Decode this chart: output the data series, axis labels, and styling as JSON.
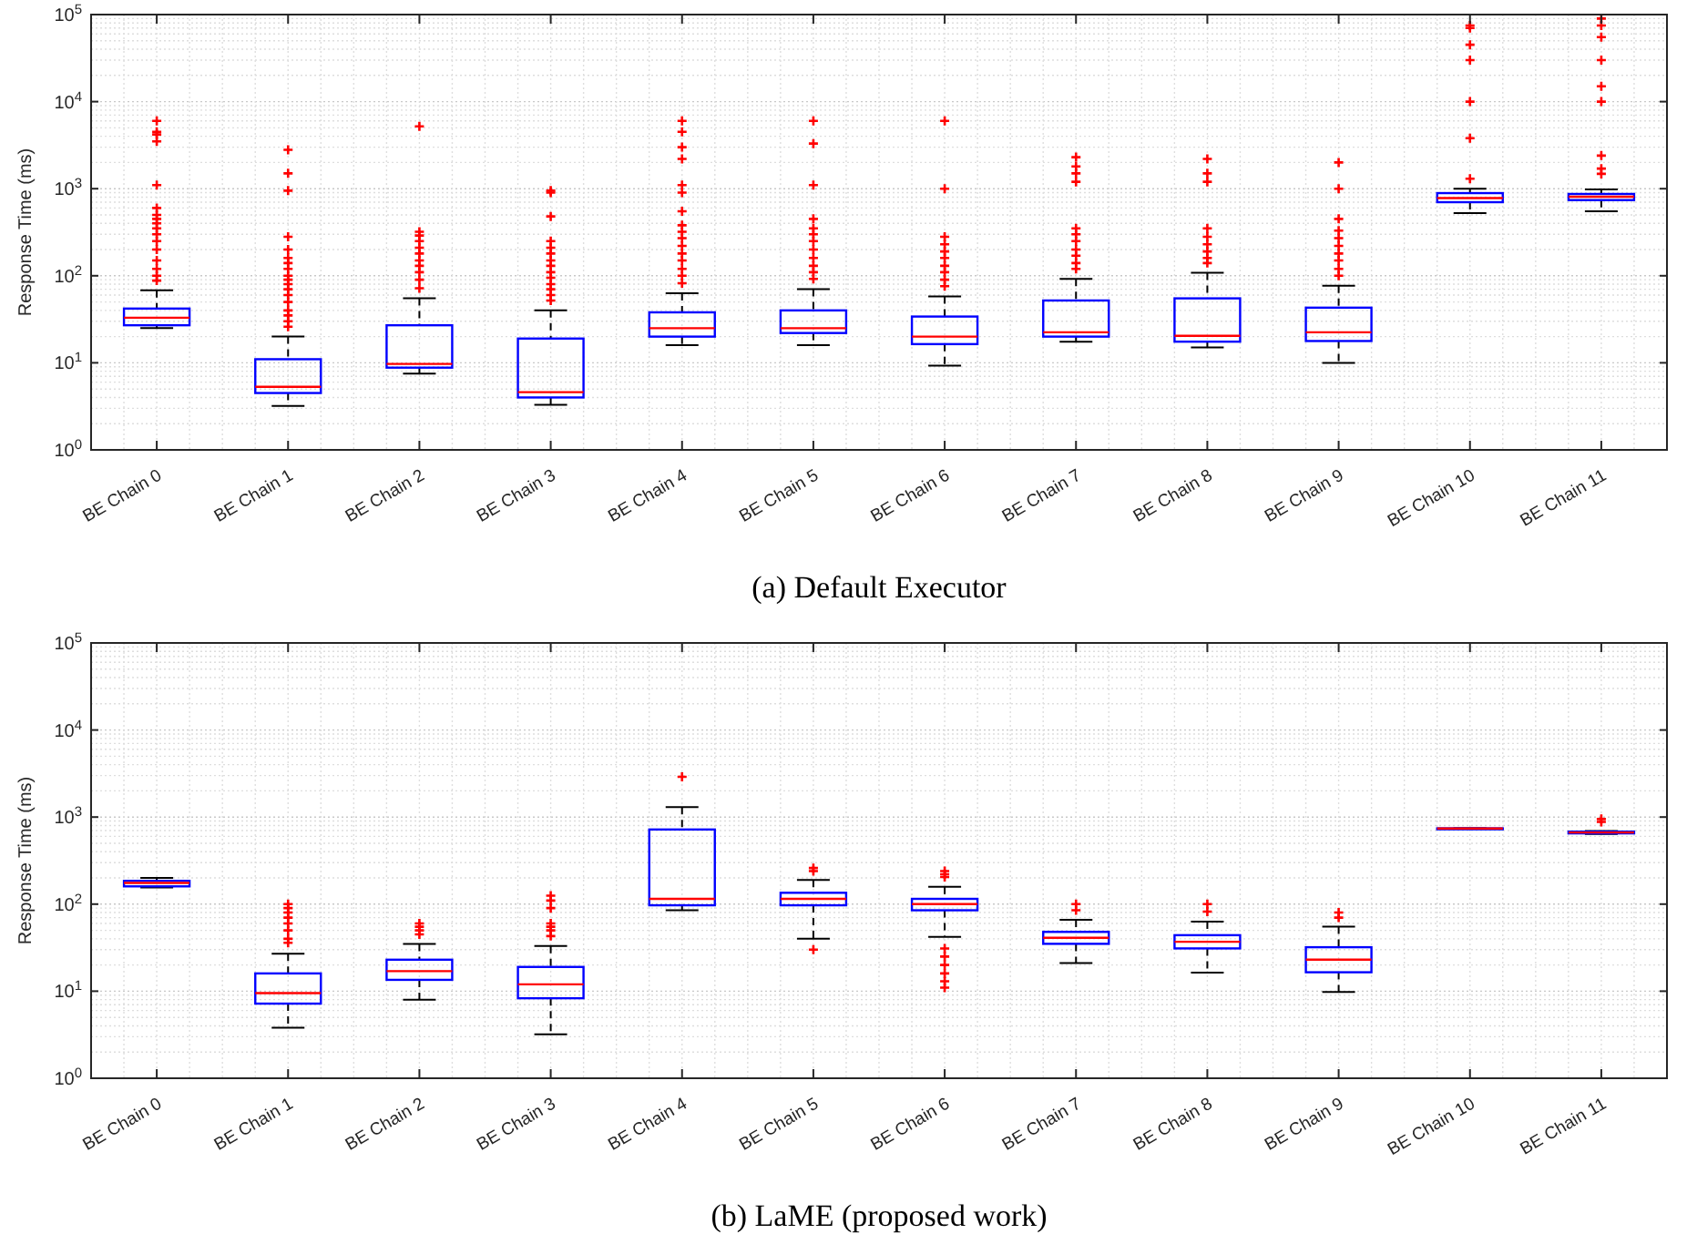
{
  "chart_data": [
    {
      "type": "box",
      "title": "(a) Default Executor",
      "ylabel": "Response Time (ms)",
      "log": true,
      "grid": true,
      "marker": "cross",
      "categories": [
        "BE Chain 0",
        "BE Chain 1",
        "BE Chain 2",
        "BE Chain 3",
        "BE Chain 4",
        "BE Chain 5",
        "BE Chain 6",
        "BE Chain 7",
        "BE Chain 8",
        "BE Chain 9",
        "BE Chain 10",
        "BE Chain 11"
      ],
      "ylim": [
        1,
        100000
      ],
      "yticks": [
        {
          "value": 1,
          "label": "10$^{0}$"
        },
        {
          "value": 10,
          "label": "10$^{1}$"
        },
        {
          "value": 100,
          "label": "10$^{2}$"
        },
        {
          "value": 1000,
          "label": "10$^{3}$"
        },
        {
          "value": 10000,
          "label": "10$^{4}$"
        },
        {
          "value": 100000,
          "label": "10$^{5}$"
        }
      ],
      "series": [
        {
          "color": "#0000ff",
          "boxes": [
            {
              "low": 25,
              "q1": 27,
              "median": 33,
              "q3": 42,
              "high": 68,
              "outliers": [
                88,
                100,
                120,
                150,
                200,
                250,
                300,
                350,
                400,
                450,
                500,
                600,
                1100,
                3500,
                4200,
                4500,
                6000
              ]
            },
            {
              "low": 3.2,
              "q1": 4.5,
              "median": 5.3,
              "q3": 11,
              "high": 20,
              "outliers": [
                26,
                30,
                35,
                40,
                50,
                60,
                70,
                80,
                90,
                100,
                120,
                140,
                160,
                200,
                280,
                950,
                1500,
                2800
              ]
            },
            {
              "low": 7.5,
              "q1": 8.8,
              "median": 9.7,
              "q3": 27,
              "high": 55,
              "outliers": [
                72,
                90,
                110,
                130,
                150,
                180,
                210,
                250,
                290,
                320,
                5200
              ]
            },
            {
              "low": 3.3,
              "q1": 4,
              "median": 4.6,
              "q3": 19,
              "high": 40,
              "outliers": [
                52,
                60,
                70,
                80,
                95,
                110,
                130,
                150,
                180,
                210,
                250,
                480,
                900,
                950
              ]
            },
            {
              "low": 16,
              "q1": 20,
              "median": 25,
              "q3": 38,
              "high": 63,
              "outliers": [
                82,
                100,
                120,
                150,
                180,
                220,
                270,
                320,
                380,
                550,
                900,
                1100,
                2200,
                3000,
                4500,
                6000
              ]
            },
            {
              "low": 16,
              "q1": 22,
              "median": 25,
              "q3": 40,
              "high": 70,
              "outliers": [
                92,
                110,
                130,
                160,
                200,
                250,
                300,
                350,
                450,
                1100,
                3300,
                6000
              ]
            },
            {
              "low": 9.3,
              "q1": 16.4,
              "median": 20,
              "q3": 34,
              "high": 58,
              "outliers": [
                76,
                90,
                110,
                130,
                160,
                190,
                230,
                280,
                1000,
                6000
              ]
            },
            {
              "low": 17.5,
              "q1": 20,
              "median": 22.4,
              "q3": 52,
              "high": 92,
              "outliers": [
                120,
                140,
                170,
                200,
                250,
                300,
                350,
                1200,
                1500,
                1800,
                2300
              ]
            },
            {
              "low": 15,
              "q1": 17.5,
              "median": 20.4,
              "q3": 55,
              "high": 108,
              "outliers": [
                140,
                160,
                190,
                230,
                280,
                350,
                1200,
                1500,
                2200
              ]
            },
            {
              "low": 10,
              "q1": 17.8,
              "median": 22.4,
              "q3": 43,
              "high": 77,
              "outliers": [
                100,
                120,
                150,
                180,
                220,
                270,
                330,
                450,
                1000,
                2000
              ]
            },
            {
              "low": 525,
              "q1": 700,
              "median": 780,
              "q3": 890,
              "high": 1000,
              "outliers": [
                1300,
                3800,
                10000,
                30000,
                45000,
                70000,
                75000
              ]
            },
            {
              "low": 550,
              "q1": 740,
              "median": 810,
              "q3": 870,
              "high": 980,
              "outliers": [
                1480,
                1700,
                2400,
                10000,
                15000,
                30000,
                55000,
                75000,
                90000
              ]
            }
          ]
        }
      ]
    },
    {
      "type": "box",
      "title": "(b) LaME (proposed work)",
      "ylabel": "Response Time (ms)",
      "log": true,
      "grid": true,
      "marker": "cross",
      "categories": [
        "BE Chain 0",
        "BE Chain 1",
        "BE Chain 2",
        "BE Chain 3",
        "BE Chain 4",
        "BE Chain 5",
        "BE Chain 6",
        "BE Chain 7",
        "BE Chain 8",
        "BE Chain 9",
        "BE Chain 10",
        "BE Chain 11"
      ],
      "ylim": [
        1,
        100000
      ],
      "yticks": [
        {
          "value": 1,
          "label": "10$^{0}$"
        },
        {
          "value": 10,
          "label": "10$^{1}$"
        },
        {
          "value": 100,
          "label": "10$^{2}$"
        },
        {
          "value": 1000,
          "label": "10$^{3}$"
        },
        {
          "value": 10000,
          "label": "10$^{4}$"
        },
        {
          "value": 100000,
          "label": "10$^{5}$"
        }
      ],
      "series": [
        {
          "color": "#0000ff",
          "boxes": [
            {
              "low": 155,
              "q1": 160,
              "median": 175,
              "q3": 185,
              "high": 200
            },
            {
              "low": 3.8,
              "q1": 7.2,
              "median": 9.5,
              "q3": 16,
              "high": 27,
              "outliers": [
                36,
                40,
                50,
                60,
                70,
                80,
                90,
                100
              ]
            },
            {
              "low": 8,
              "q1": 13.5,
              "median": 17,
              "q3": 23,
              "high": 35,
              "outliers": [
                45,
                50,
                55,
                60
              ]
            },
            {
              "low": 3.2,
              "q1": 8.3,
              "median": 12,
              "q3": 19,
              "high": 33,
              "outliers": [
                43,
                50,
                55,
                60,
                90,
                110,
                125
              ]
            },
            {
              "low": 85,
              "q1": 97,
              "median": 115,
              "q3": 720,
              "high": 1300,
              "outliers": [
                2900
              ]
            },
            {
              "low": 40,
              "q1": 97,
              "median": 115,
              "q3": 135,
              "high": 190,
              "outliers": [
                30,
                240,
                260
              ]
            },
            {
              "low": 42,
              "q1": 85,
              "median": 100,
              "q3": 115,
              "high": 158,
              "outliers": [
                11,
                13,
                16,
                20,
                25,
                31,
                205,
                220,
                240
              ]
            },
            {
              "low": 21,
              "q1": 35,
              "median": 41,
              "q3": 48,
              "high": 66,
              "outliers": [
                85,
                100
              ]
            },
            {
              "low": 16.3,
              "q1": 31,
              "median": 37,
              "q3": 44,
              "high": 63,
              "outliers": [
                82,
                100
              ]
            },
            {
              "low": 9.8,
              "q1": 16.5,
              "median": 23,
              "q3": 32,
              "high": 55,
              "outliers": [
                70,
                80
              ]
            },
            {
              "low": 735,
              "q1": 740,
              "median": 740,
              "q3": 742,
              "high": 745
            },
            {
              "low": 640,
              "q1": 650,
              "median": 665,
              "q3": 680,
              "high": 690,
              "outliers": [
                880,
                950
              ]
            }
          ]
        }
      ]
    }
  ]
}
